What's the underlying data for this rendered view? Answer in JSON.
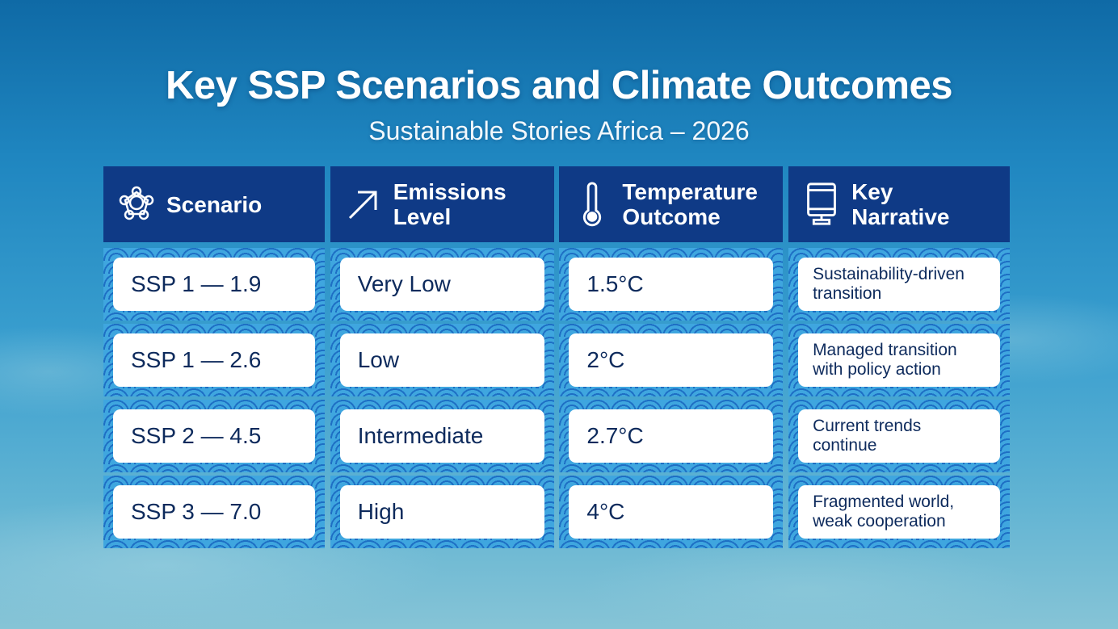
{
  "title": "Key SSP Scenarios and Climate Outcomes",
  "subtitle": "Sustainable Stories Africa – 2026",
  "columns": [
    {
      "label_1": "Scenario",
      "label_2": "",
      "icon": "network-icon"
    },
    {
      "label_1": "Emissions",
      "label_2": "Level",
      "icon": "arrow-up-right-icon"
    },
    {
      "label_1": "Temperature",
      "label_2": "Outcome",
      "icon": "thermometer-icon"
    },
    {
      "label_1": "Key",
      "label_2": "Narrative",
      "icon": "monitor-icon"
    }
  ],
  "rows": [
    {
      "scenario": "SSP 1 — 1.9",
      "emissions": "Very Low",
      "temperature": "1.5°C",
      "narrative_1": "Sustainability-driven",
      "narrative_2": "transition"
    },
    {
      "scenario": "SSP 1 — 2.6",
      "emissions": "Low",
      "temperature": "2°C",
      "narrative_1": "Managed transition",
      "narrative_2": "with policy action"
    },
    {
      "scenario": "SSP 2 — 4.5",
      "emissions": "Intermediate",
      "temperature": "2.7°C",
      "narrative_1": "Current trends",
      "narrative_2": "continue"
    },
    {
      "scenario": "SSP 3 — 7.0",
      "emissions": "High",
      "temperature": "4°C",
      "narrative_1": "Fragmented world,",
      "narrative_2": "weak cooperation"
    }
  ]
}
